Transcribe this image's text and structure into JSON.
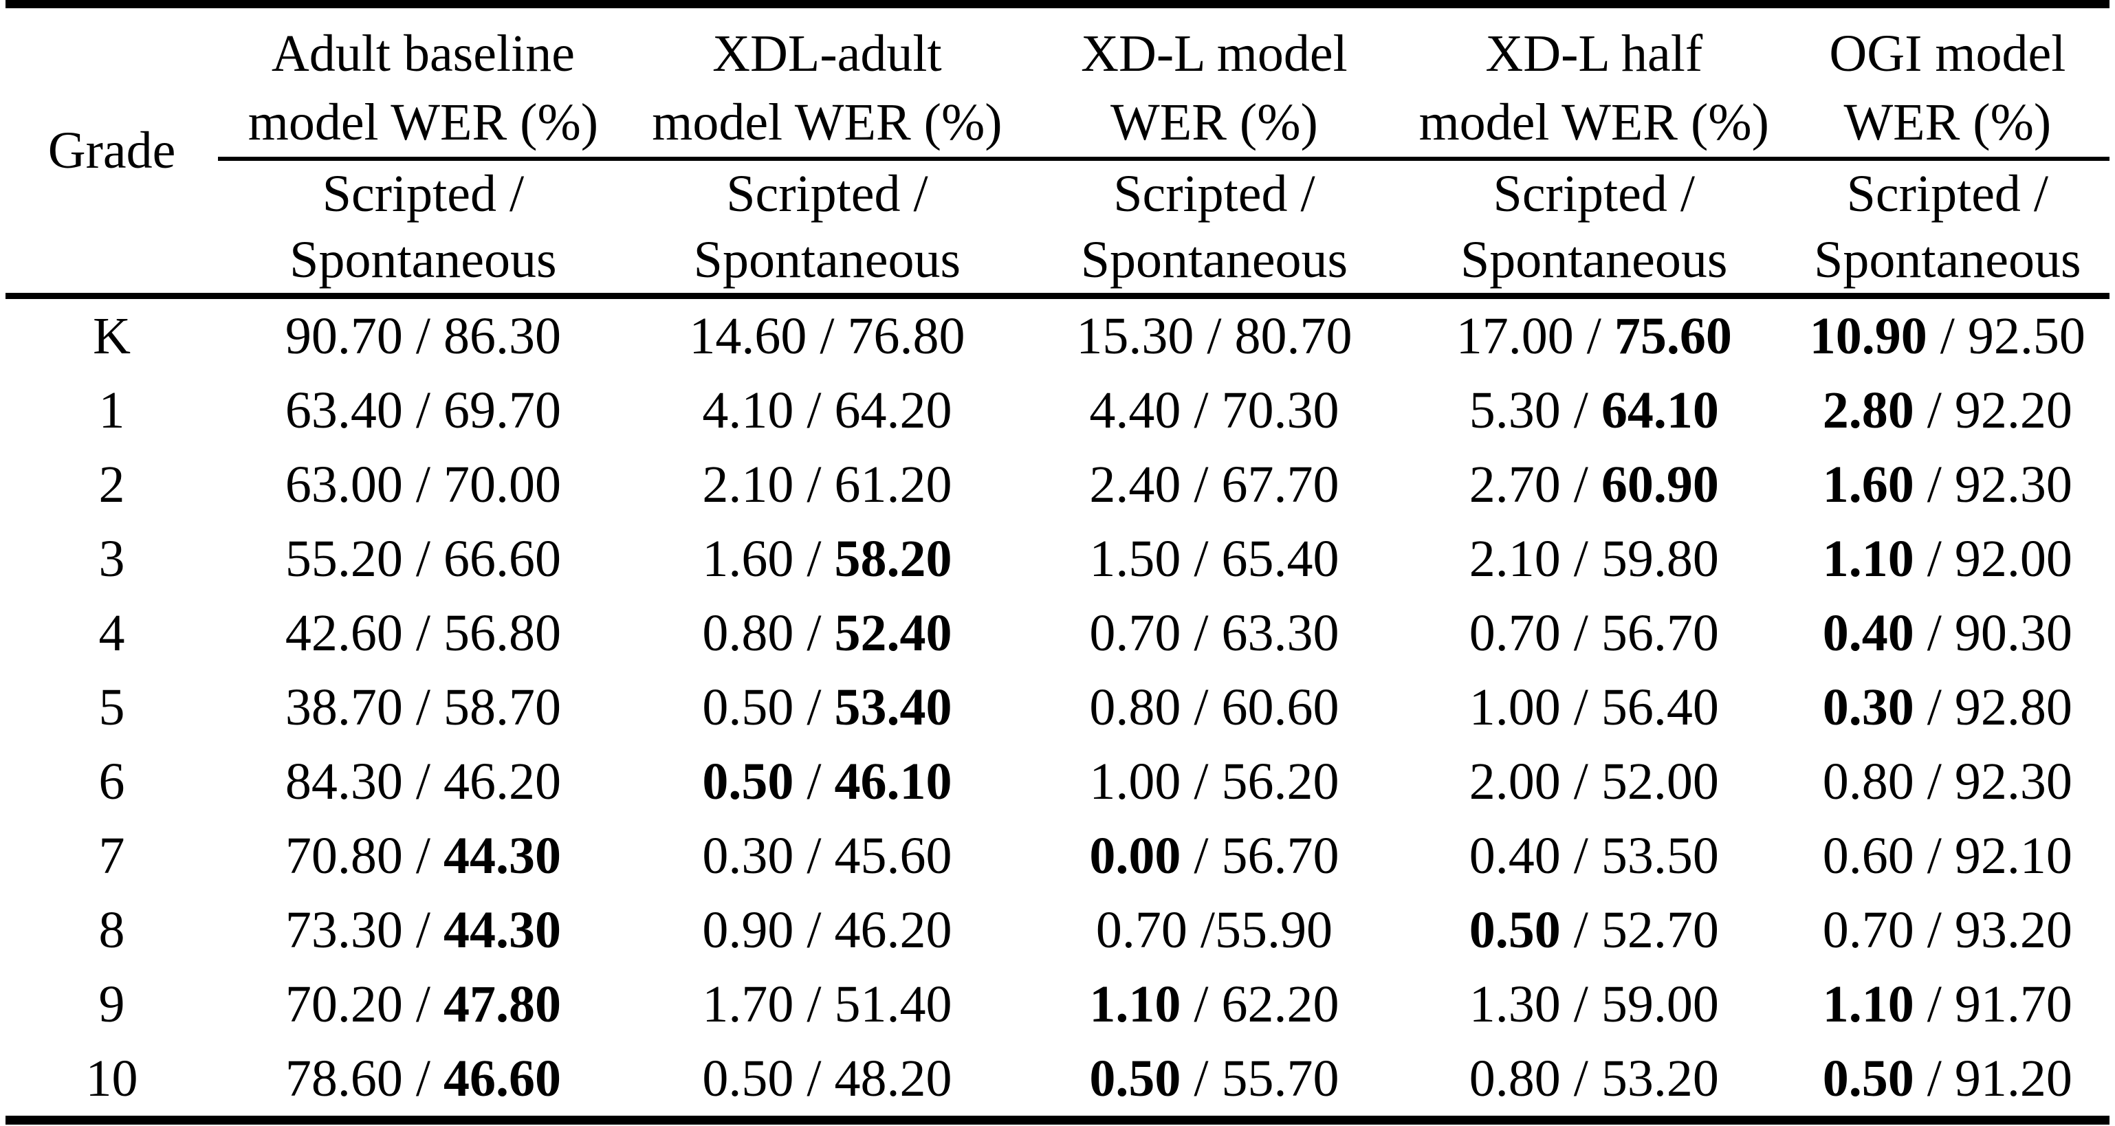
{
  "page": {
    "background_color": "#ffffff",
    "text_color": "#000000"
  },
  "table": {
    "grade_header": "Grade",
    "columns": [
      {
        "name_line1": "Adult baseline",
        "name_line2": "model WER (%)",
        "sub_line1": "Scripted /",
        "sub_line2": "Spontaneous"
      },
      {
        "name_line1": "XDL-adult",
        "name_line2": "model WER (%)",
        "sub_line1": "Scripted /",
        "sub_line2": "Spontaneous"
      },
      {
        "name_line1": "XD-L model",
        "name_line2": "WER (%)",
        "sub_line1": "Scripted /",
        "sub_line2": "Spontaneous"
      },
      {
        "name_line1": "XD-L half",
        "name_line2": "model WER (%)",
        "sub_line1": "Scripted /",
        "sub_line2": "Spontaneous"
      },
      {
        "name_line1": "OGI model",
        "name_line2": "WER (%)",
        "sub_line1": "Scripted /",
        "sub_line2": "Spontaneous"
      }
    ],
    "rows": [
      {
        "grade": "K",
        "cells": [
          {
            "scripted": "90.70",
            "sep": " / ",
            "spontaneous": "86.30",
            "scripted_bold": false,
            "spontaneous_bold": false
          },
          {
            "scripted": "14.60",
            "sep": " / ",
            "spontaneous": "76.80",
            "scripted_bold": false,
            "spontaneous_bold": false
          },
          {
            "scripted": "15.30",
            "sep": " / ",
            "spontaneous": "80.70",
            "scripted_bold": false,
            "spontaneous_bold": false
          },
          {
            "scripted": "17.00",
            "sep": " / ",
            "spontaneous": "75.60",
            "scripted_bold": false,
            "spontaneous_bold": true
          },
          {
            "scripted": "10.90",
            "sep": " / ",
            "spontaneous": "92.50",
            "scripted_bold": true,
            "spontaneous_bold": false
          }
        ]
      },
      {
        "grade": "1",
        "cells": [
          {
            "scripted": "63.40",
            "sep": " / ",
            "spontaneous": "69.70",
            "scripted_bold": false,
            "spontaneous_bold": false
          },
          {
            "scripted": "4.10",
            "sep": " / ",
            "spontaneous": "64.20",
            "scripted_bold": false,
            "spontaneous_bold": false
          },
          {
            "scripted": "4.40",
            "sep": " / ",
            "spontaneous": "70.30",
            "scripted_bold": false,
            "spontaneous_bold": false
          },
          {
            "scripted": "5.30",
            "sep": " / ",
            "spontaneous": "64.10",
            "scripted_bold": false,
            "spontaneous_bold": true
          },
          {
            "scripted": "2.80",
            "sep": " / ",
            "spontaneous": "92.20",
            "scripted_bold": true,
            "spontaneous_bold": false
          }
        ]
      },
      {
        "grade": "2",
        "cells": [
          {
            "scripted": "63.00",
            "sep": " / ",
            "spontaneous": "70.00",
            "scripted_bold": false,
            "spontaneous_bold": false
          },
          {
            "scripted": "2.10",
            "sep": " / ",
            "spontaneous": "61.20",
            "scripted_bold": false,
            "spontaneous_bold": false
          },
          {
            "scripted": "2.40",
            "sep": " / ",
            "spontaneous": "67.70",
            "scripted_bold": false,
            "spontaneous_bold": false
          },
          {
            "scripted": "2.70",
            "sep": " / ",
            "spontaneous": "60.90",
            "scripted_bold": false,
            "spontaneous_bold": true
          },
          {
            "scripted": "1.60",
            "sep": " / ",
            "spontaneous": "92.30",
            "scripted_bold": true,
            "spontaneous_bold": false
          }
        ]
      },
      {
        "grade": "3",
        "cells": [
          {
            "scripted": "55.20",
            "sep": " / ",
            "spontaneous": "66.60",
            "scripted_bold": false,
            "spontaneous_bold": false
          },
          {
            "scripted": "1.60",
            "sep": " / ",
            "spontaneous": "58.20",
            "scripted_bold": false,
            "spontaneous_bold": true
          },
          {
            "scripted": "1.50",
            "sep": " / ",
            "spontaneous": "65.40",
            "scripted_bold": false,
            "spontaneous_bold": false
          },
          {
            "scripted": "2.10",
            "sep": " / ",
            "spontaneous": "59.80",
            "scripted_bold": false,
            "spontaneous_bold": false
          },
          {
            "scripted": "1.10",
            "sep": " / ",
            "spontaneous": "92.00",
            "scripted_bold": true,
            "spontaneous_bold": false
          }
        ]
      },
      {
        "grade": "4",
        "cells": [
          {
            "scripted": "42.60",
            "sep": " / ",
            "spontaneous": "56.80",
            "scripted_bold": false,
            "spontaneous_bold": false
          },
          {
            "scripted": "0.80",
            "sep": " / ",
            "spontaneous": "52.40",
            "scripted_bold": false,
            "spontaneous_bold": true
          },
          {
            "scripted": "0.70",
            "sep": " / ",
            "spontaneous": "63.30",
            "scripted_bold": false,
            "spontaneous_bold": false
          },
          {
            "scripted": "0.70",
            "sep": " / ",
            "spontaneous": "56.70",
            "scripted_bold": false,
            "spontaneous_bold": false
          },
          {
            "scripted": "0.40",
            "sep": " / ",
            "spontaneous": "90.30",
            "scripted_bold": true,
            "spontaneous_bold": false
          }
        ]
      },
      {
        "grade": "5",
        "cells": [
          {
            "scripted": "38.70",
            "sep": " / ",
            "spontaneous": "58.70",
            "scripted_bold": false,
            "spontaneous_bold": false
          },
          {
            "scripted": "0.50",
            "sep": " / ",
            "spontaneous": "53.40",
            "scripted_bold": false,
            "spontaneous_bold": true
          },
          {
            "scripted": "0.80",
            "sep": " / ",
            "spontaneous": "60.60",
            "scripted_bold": false,
            "spontaneous_bold": false
          },
          {
            "scripted": "1.00",
            "sep": " / ",
            "spontaneous": "56.40",
            "scripted_bold": false,
            "spontaneous_bold": false
          },
          {
            "scripted": "0.30",
            "sep": " / ",
            "spontaneous": "92.80",
            "scripted_bold": true,
            "spontaneous_bold": false
          }
        ]
      },
      {
        "grade": "6",
        "cells": [
          {
            "scripted": "84.30",
            "sep": " / ",
            "spontaneous": "46.20",
            "scripted_bold": false,
            "spontaneous_bold": false
          },
          {
            "scripted": "0.50",
            "sep": " / ",
            "spontaneous": "46.10",
            "scripted_bold": true,
            "spontaneous_bold": true
          },
          {
            "scripted": "1.00",
            "sep": " / ",
            "spontaneous": "56.20",
            "scripted_bold": false,
            "spontaneous_bold": false
          },
          {
            "scripted": "2.00",
            "sep": " / ",
            "spontaneous": "52.00",
            "scripted_bold": false,
            "spontaneous_bold": false
          },
          {
            "scripted": "0.80",
            "sep": " / ",
            "spontaneous": "92.30",
            "scripted_bold": false,
            "spontaneous_bold": false
          }
        ]
      },
      {
        "grade": "7",
        "cells": [
          {
            "scripted": "70.80",
            "sep": " / ",
            "spontaneous": "44.30",
            "scripted_bold": false,
            "spontaneous_bold": true
          },
          {
            "scripted": "0.30",
            "sep": " / ",
            "spontaneous": "45.60",
            "scripted_bold": false,
            "spontaneous_bold": false
          },
          {
            "scripted": "0.00",
            "sep": " / ",
            "spontaneous": "56.70",
            "scripted_bold": true,
            "spontaneous_bold": false
          },
          {
            "scripted": "0.40",
            "sep": " / ",
            "spontaneous": "53.50",
            "scripted_bold": false,
            "spontaneous_bold": false
          },
          {
            "scripted": "0.60",
            "sep": " / ",
            "spontaneous": "92.10",
            "scripted_bold": false,
            "spontaneous_bold": false
          }
        ]
      },
      {
        "grade": "8",
        "cells": [
          {
            "scripted": "73.30",
            "sep": " / ",
            "spontaneous": "44.30",
            "scripted_bold": false,
            "spontaneous_bold": true
          },
          {
            "scripted": "0.90",
            "sep": " / ",
            "spontaneous": "46.20",
            "scripted_bold": false,
            "spontaneous_bold": false
          },
          {
            "scripted": "0.70",
            "sep": " /",
            "spontaneous": "55.90",
            "scripted_bold": false,
            "spontaneous_bold": false
          },
          {
            "scripted": "0.50",
            "sep": " / ",
            "spontaneous": "52.70",
            "scripted_bold": true,
            "spontaneous_bold": false
          },
          {
            "scripted": "0.70",
            "sep": " / ",
            "spontaneous": "93.20",
            "scripted_bold": false,
            "spontaneous_bold": false
          }
        ]
      },
      {
        "grade": "9",
        "cells": [
          {
            "scripted": "70.20",
            "sep": " / ",
            "spontaneous": "47.80",
            "scripted_bold": false,
            "spontaneous_bold": true
          },
          {
            "scripted": "1.70",
            "sep": " / ",
            "spontaneous": "51.40",
            "scripted_bold": false,
            "spontaneous_bold": false
          },
          {
            "scripted": "1.10",
            "sep": " / ",
            "spontaneous": "62.20",
            "scripted_bold": true,
            "spontaneous_bold": false
          },
          {
            "scripted": "1.30",
            "sep": " / ",
            "spontaneous": "59.00",
            "scripted_bold": false,
            "spontaneous_bold": false
          },
          {
            "scripted": "1.10",
            "sep": " / ",
            "spontaneous": "91.70",
            "scripted_bold": true,
            "spontaneous_bold": false
          }
        ]
      },
      {
        "grade": "10",
        "cells": [
          {
            "scripted": "78.60",
            "sep": " / ",
            "spontaneous": "46.60",
            "scripted_bold": false,
            "spontaneous_bold": true
          },
          {
            "scripted": "0.50",
            "sep": " / ",
            "spontaneous": "48.20",
            "scripted_bold": false,
            "spontaneous_bold": false
          },
          {
            "scripted": "0.50",
            "sep": " / ",
            "spontaneous": "55.70",
            "scripted_bold": true,
            "spontaneous_bold": false
          },
          {
            "scripted": "0.80",
            "sep": " / ",
            "spontaneous": "53.20",
            "scripted_bold": false,
            "spontaneous_bold": false
          },
          {
            "scripted": "0.50",
            "sep": " / ",
            "spontaneous": "91.20",
            "scripted_bold": true,
            "spontaneous_bold": false
          }
        ]
      }
    ]
  }
}
